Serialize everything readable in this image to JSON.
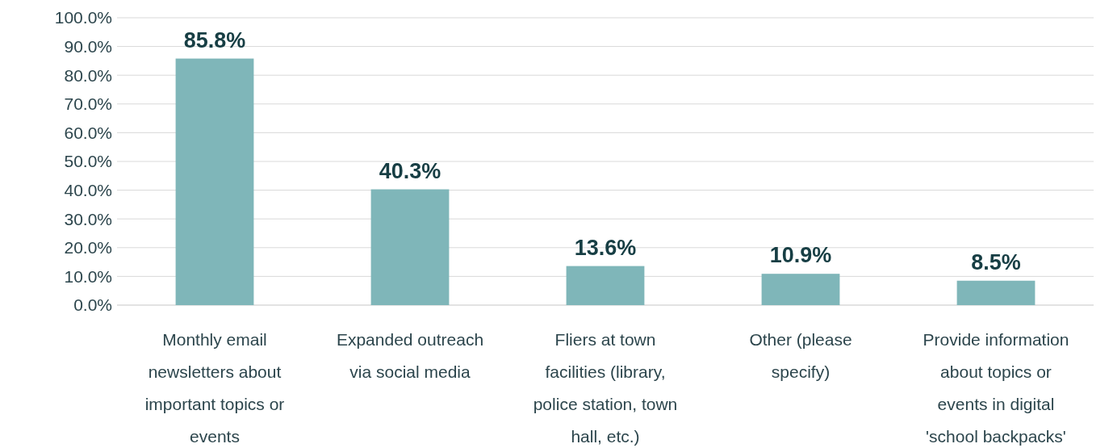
{
  "chart_data": {
    "type": "bar",
    "categories": [
      "Monthly email newsletters about important topics or events",
      "Expanded outreach via social media",
      "Fliers at town facilities (library, police station, town hall, etc.)",
      "Other (please specify)",
      "Provide information about topics or events in digital 'school backpacks'"
    ],
    "values": [
      85.8,
      40.3,
      13.6,
      10.9,
      8.5
    ],
    "value_labels": [
      "85.8%",
      "40.3%",
      "13.6%",
      "10.9%",
      "8.5%"
    ],
    "color": "#7fb6b9",
    "ylim": [
      0,
      100
    ],
    "yticks": [
      {
        "value": 0,
        "label": "0.0%"
      },
      {
        "value": 10,
        "label": "10.0%"
      },
      {
        "value": 20,
        "label": "20.0%"
      },
      {
        "value": 30,
        "label": "30.0%"
      },
      {
        "value": 40,
        "label": "40.0%"
      },
      {
        "value": 50,
        "label": "50.0%"
      },
      {
        "value": 60,
        "label": "60.0%"
      },
      {
        "value": 70,
        "label": "70.0%"
      },
      {
        "value": 80,
        "label": "80.0%"
      },
      {
        "value": 90,
        "label": "90.0%"
      },
      {
        "value": 100,
        "label": "100.0%"
      }
    ],
    "grid": "y"
  }
}
